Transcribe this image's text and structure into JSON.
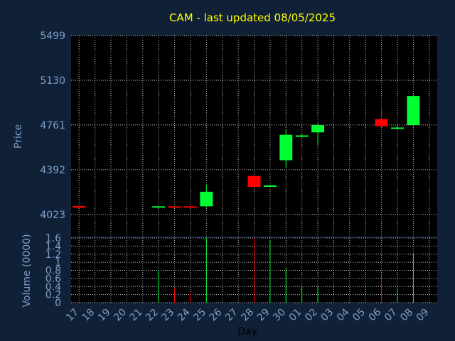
{
  "chart_data": {
    "type": "candlestick",
    "title": "CAM - last updated 08/05/2025",
    "colors": {
      "background": "#0f2037",
      "plot_background": "#000000",
      "grid": "#c8c8c8",
      "up": "#00ff33",
      "down": "#ff0000",
      "title": "#ffff00",
      "axis_text": "#7f9fc8"
    },
    "price_panel": {
      "ylabel": "Price",
      "ylim": [
        3840,
        5499
      ],
      "yticks": [
        4023,
        4392,
        4761,
        5130,
        5499
      ],
      "grid": true
    },
    "volume_panel": {
      "ylabel": "Volume (0000)",
      "ylim": [
        0,
        1.6
      ],
      "yticks": [
        0,
        0.2,
        0.4,
        0.6,
        0.8,
        1,
        1.2,
        1.4,
        1.6
      ],
      "ytick_labels": [
        "0",
        "0.2",
        "0.4",
        "0.6",
        "0.8",
        "1",
        "1.2",
        "1.4",
        "1.6"
      ],
      "grid": true
    },
    "xlabel": "Day",
    "x_ticks": [
      "17",
      "18",
      "19",
      "20",
      "21",
      "22",
      "23",
      "24",
      "25",
      "26",
      "27",
      "28",
      "29",
      "30",
      "01",
      "02",
      "03",
      "04",
      "05",
      "06",
      "07",
      "08",
      "09"
    ],
    "candles": [
      {
        "i": 0,
        "open": 4092,
        "high": 4092,
        "low": 4078,
        "close": 4078,
        "volume": 0.0
      },
      {
        "i": 5,
        "open": 4085,
        "high": 4092,
        "low": 4083,
        "close": 4090,
        "volume": 0.8
      },
      {
        "i": 6,
        "open": 4090,
        "high": 4090,
        "low": 4080,
        "close": 4080,
        "volume": 0.35
      },
      {
        "i": 7,
        "open": 4090,
        "high": 4090,
        "low": 4080,
        "close": 4080,
        "volume": 0.25
      },
      {
        "i": 8,
        "open": 4090,
        "high": 4270,
        "low": 4080,
        "close": 4210,
        "volume": 1.6
      },
      {
        "i": 11,
        "open": 4340,
        "high": 4340,
        "low": 4250,
        "close": 4250,
        "volume": 1.6
      },
      {
        "i": 12,
        "open": 4260,
        "high": 4265,
        "low": 4255,
        "close": 4262,
        "volume": 1.55
      },
      {
        "i": 13,
        "open": 4470,
        "high": 4720,
        "low": 4410,
        "close": 4680,
        "volume": 0.85
      },
      {
        "i": 14,
        "open": 4670,
        "high": 4690,
        "low": 4650,
        "close": 4675,
        "volume": 0.4
      },
      {
        "i": 15,
        "open": 4700,
        "high": 4770,
        "low": 4600,
        "close": 4760,
        "volume": 0.4
      },
      {
        "i": 19,
        "open": 4810,
        "high": 4900,
        "low": 4740,
        "close": 4750,
        "volume": 0.7
      },
      {
        "i": 20,
        "open": 4730,
        "high": 4760,
        "low": 4720,
        "close": 4740,
        "volume": 0.35
      },
      {
        "i": 21,
        "open": 4760,
        "high": 5010,
        "low": 4760,
        "close": 5000,
        "volume": 1.2
      }
    ]
  }
}
